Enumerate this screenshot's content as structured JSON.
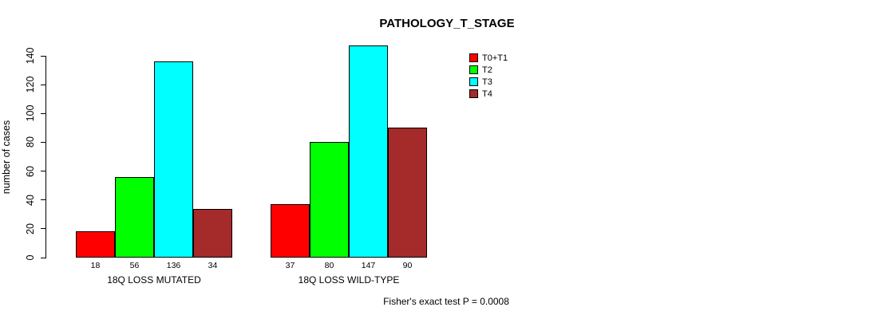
{
  "chart_data": {
    "type": "bar",
    "title": "PATHOLOGY_T_STAGE",
    "ylabel": "number of cases",
    "xlabel": "",
    "footnote": "Fisher's exact test P = 0.0008",
    "categories": [
      "18Q LOSS MUTATED",
      "18Q LOSS WILD-TYPE"
    ],
    "series": [
      {
        "name": "T0+T1",
        "color": "#ff0000",
        "values": [
          18,
          37
        ]
      },
      {
        "name": "T2",
        "color": "#00ff00",
        "values": [
          56,
          80
        ]
      },
      {
        "name": "T3",
        "color": "#00ffff",
        "values": [
          136,
          147
        ]
      },
      {
        "name": "T4",
        "color": "#a52a2a",
        "values": [
          34,
          90
        ]
      }
    ],
    "ylim": [
      0,
      140
    ],
    "yticks": [
      0,
      20,
      40,
      60,
      80,
      100,
      120,
      140
    ],
    "grid": false,
    "bar_value_labels_shown": true,
    "bar_border_color": "#000000",
    "legend_position": "top-right"
  }
}
